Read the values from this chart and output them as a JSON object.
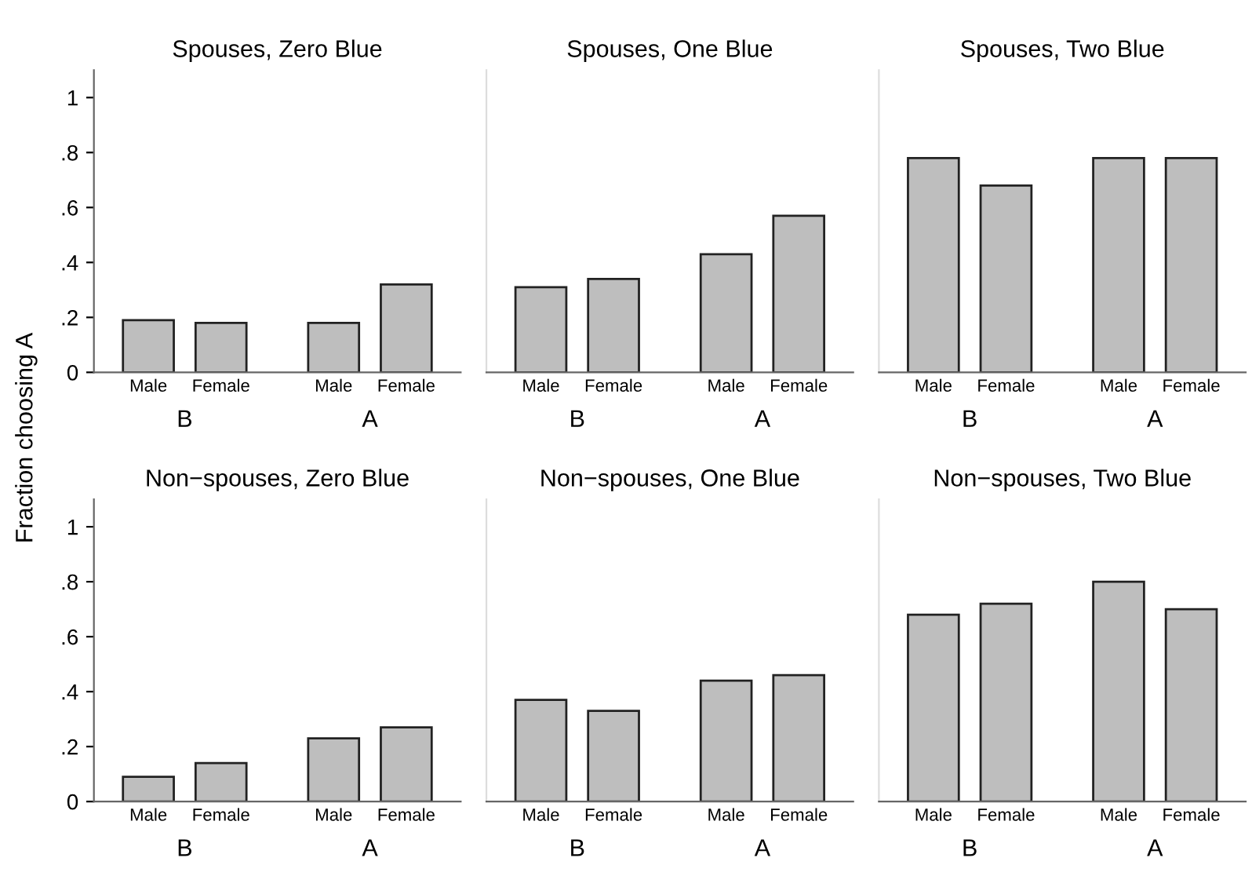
{
  "chart_data": [
    {
      "type": "bar",
      "title": "Spouses, Zero Blue",
      "ylabel": "Fraction choosing A",
      "categories": [
        "Male",
        "Female",
        "Male",
        "Female"
      ],
      "annotations": [
        "B",
        "A"
      ],
      "values": [
        0.19,
        0.18,
        0.18,
        0.32
      ],
      "color": "#bebebe",
      "ylim": [
        0,
        1.1
      ],
      "yticks": [
        0,
        {
          "value": 0.2,
          "label": ".2"
        },
        {
          "value": 0.4,
          "label": ".4"
        },
        {
          "value": 0.6,
          "label": ".6"
        },
        {
          "value": 0.8,
          "label": ".8"
        },
        1
      ],
      "grid": false
    },
    {
      "type": "bar",
      "title": "Spouses, One Blue",
      "categories": [
        "Male",
        "Female",
        "Male",
        "Female"
      ],
      "annotations": [
        "B",
        "A"
      ],
      "values": [
        0.31,
        0.34,
        0.43,
        0.57
      ],
      "color": "#bebebe",
      "ylim": [
        0,
        1.1
      ],
      "tick_labels": "x",
      "grid": false
    },
    {
      "type": "bar",
      "title": "Spouses, Two Blue",
      "categories": [
        "Male",
        "Female",
        "Male",
        "Female"
      ],
      "annotations": [
        "B",
        "A"
      ],
      "values": [
        0.78,
        0.68,
        0.78,
        0.78
      ],
      "color": "#bebebe",
      "ylim": [
        0,
        1.1
      ],
      "tick_labels": "x",
      "grid": false
    },
    {
      "type": "bar",
      "title": "Non−spouses, Zero Blue",
      "categories": [
        "Male",
        "Female",
        "Male",
        "Female"
      ],
      "annotations": [
        "B",
        "A"
      ],
      "values": [
        0.09,
        0.14,
        0.23,
        0.27
      ],
      "color": "#bebebe",
      "ylim": [
        0,
        1.1
      ],
      "yticks": [
        0,
        {
          "value": 0.2,
          "label": ".2"
        },
        {
          "value": 0.4,
          "label": ".4"
        },
        {
          "value": 0.6,
          "label": ".6"
        },
        {
          "value": 0.8,
          "label": ".8"
        },
        1
      ],
      "grid": false
    },
    {
      "type": "bar",
      "title": "Non−spouses, One Blue",
      "categories": [
        "Male",
        "Female",
        "Male",
        "Female"
      ],
      "annotations": [
        "B",
        "A"
      ],
      "values": [
        0.37,
        0.33,
        0.44,
        0.46
      ],
      "color": "#bebebe",
      "ylim": [
        0,
        1.1
      ],
      "tick_labels": "x",
      "grid": false
    },
    {
      "type": "bar",
      "title": "Non−spouses, Two Blue",
      "categories": [
        "Male",
        "Female",
        "Male",
        "Female"
      ],
      "annotations": [
        "B",
        "A"
      ],
      "values": [
        0.68,
        0.72,
        0.8,
        0.7
      ],
      "color": "#bebebe",
      "ylim": [
        0,
        1.1
      ],
      "tick_labels": "x",
      "grid": false
    }
  ]
}
